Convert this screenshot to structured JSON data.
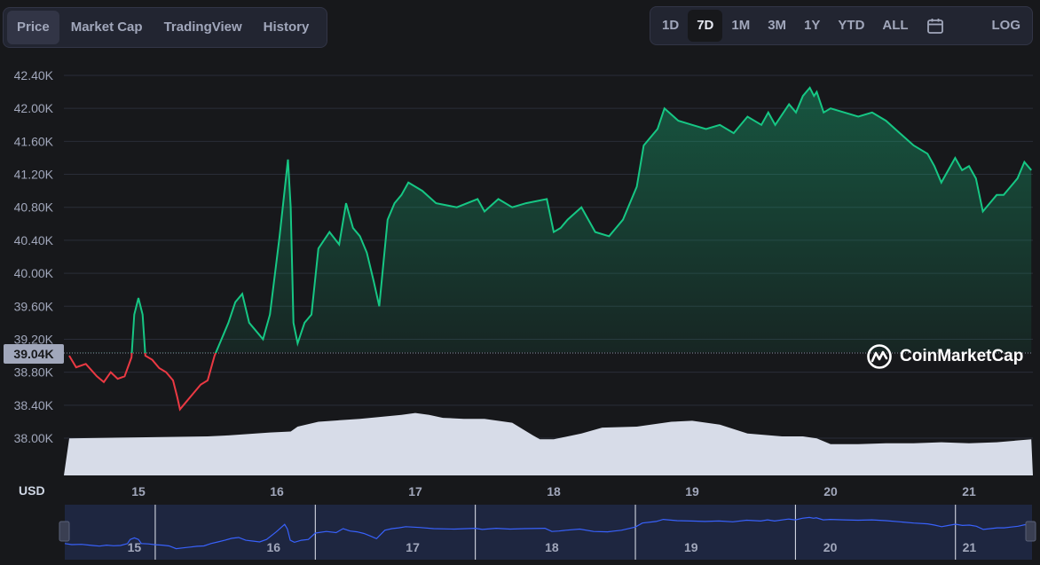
{
  "tabs": [
    {
      "label": "Price",
      "active": true
    },
    {
      "label": "Market Cap",
      "active": false
    },
    {
      "label": "TradingView",
      "active": false
    },
    {
      "label": "History",
      "active": false
    }
  ],
  "ranges": [
    {
      "label": "1D",
      "active": false
    },
    {
      "label": "7D",
      "active": true
    },
    {
      "label": "1M",
      "active": false
    },
    {
      "label": "3M",
      "active": false
    },
    {
      "label": "1Y",
      "active": false
    },
    {
      "label": "YTD",
      "active": false
    },
    {
      "label": "ALL",
      "active": false
    }
  ],
  "calendar_icon": "calendar-icon",
  "log_label": "LOG",
  "currency_label": "USD",
  "current_price_label": "39.04K",
  "brand": {
    "name": "CoinMarketCap",
    "logo_icon": "coinmarketcap-logo-icon"
  },
  "colors": {
    "up": "#16c784",
    "down": "#ea3943",
    "volume": "#d7dce8",
    "navigator_line": "#3861fb"
  },
  "chart_data": {
    "type": "line",
    "xlabel": "",
    "ylabel": "",
    "y_unit": "USD",
    "ylim": [
      37600,
      42500
    ],
    "y_ticks": [
      "42.40K",
      "42.00K",
      "41.60K",
      "41.20K",
      "40.80K",
      "40.40K",
      "40.00K",
      "39.60K",
      "39.20K",
      "38.80K",
      "38.40K",
      "38.00K"
    ],
    "y_tick_values": [
      42400,
      42000,
      41600,
      41200,
      40800,
      40400,
      40000,
      39600,
      39200,
      38800,
      38400,
      38000
    ],
    "x_ticks": [
      "15",
      "16",
      "17",
      "18",
      "19",
      "20",
      "21"
    ],
    "x_tick_day_positions": [
      15,
      16,
      17,
      18,
      19,
      20,
      21
    ],
    "x_range_days": [
      14.5,
      21.45
    ],
    "reference_price": 39040,
    "grid": true,
    "series": [
      {
        "x": [
          14.5,
          14.55,
          14.62,
          14.7,
          14.75,
          14.8,
          14.85,
          14.9,
          14.95,
          14.97,
          15.0,
          15.03,
          15.05,
          15.1,
          15.15,
          15.2,
          15.25,
          15.28,
          15.3,
          15.35,
          15.4,
          15.45,
          15.5,
          15.55,
          15.6,
          15.65,
          15.7,
          15.75,
          15.8,
          15.85,
          15.9,
          15.95,
          16.02,
          16.08,
          16.1,
          16.12,
          16.15,
          16.2,
          16.25,
          16.3,
          16.38,
          16.45,
          16.5,
          16.55,
          16.6,
          16.65,
          16.7,
          16.74,
          16.8,
          16.85,
          16.9,
          16.95,
          17.05,
          17.15,
          17.3,
          17.45,
          17.5,
          17.6,
          17.7,
          17.8,
          17.95,
          18.0,
          18.05,
          18.1,
          18.2,
          18.3,
          18.4,
          18.45,
          18.5,
          18.6,
          18.65,
          18.75,
          18.8,
          18.9,
          19.0,
          19.1,
          19.2,
          19.3,
          19.4,
          19.5,
          19.55,
          19.6,
          19.7,
          19.75,
          19.8,
          19.85,
          19.88,
          19.9,
          19.95,
          20.0,
          20.1,
          20.2,
          20.3,
          20.4,
          20.5,
          20.6,
          20.7,
          20.75,
          20.8,
          20.85,
          20.9,
          20.95,
          21.0,
          21.05,
          21.1,
          21.15,
          21.2,
          21.25,
          21.3,
          21.35,
          21.4,
          21.45
        ],
        "y": [
          39000,
          38860,
          38900,
          38750,
          38680,
          38800,
          38720,
          38750,
          38980,
          39500,
          39700,
          39500,
          39000,
          38950,
          38850,
          38800,
          38700,
          38500,
          38350,
          38450,
          38550,
          38650,
          38700,
          39000,
          39200,
          39400,
          39650,
          39750,
          39400,
          39300,
          39200,
          39500,
          40450,
          41380,
          40800,
          39400,
          39150,
          39400,
          39500,
          40300,
          40500,
          40350,
          40850,
          40550,
          40450,
          40250,
          39900,
          39600,
          40650,
          40850,
          40950,
          41100,
          41000,
          40850,
          40800,
          40900,
          40750,
          40900,
          40800,
          40850,
          40900,
          40500,
          40550,
          40650,
          40800,
          40500,
          40450,
          40550,
          40650,
          41050,
          41550,
          41750,
          42000,
          41850,
          41800,
          41750,
          41800,
          41700,
          41900,
          41800,
          41950,
          41800,
          42050,
          41950,
          42150,
          42250,
          42150,
          42200,
          41950,
          42000,
          41950,
          41900,
          41950,
          41850,
          41700,
          41550,
          41450,
          41300,
          41100,
          41250,
          41400,
          41250,
          41300,
          41150,
          40750,
          40850,
          40950,
          40950,
          41050,
          41150,
          41350,
          41250
        ]
      }
    ],
    "volume": {
      "x": [
        14.5,
        15.0,
        15.5,
        15.65,
        15.95,
        16.1,
        16.15,
        16.3,
        16.6,
        16.9,
        17.0,
        17.1,
        17.2,
        17.35,
        17.5,
        17.7,
        17.85,
        17.9,
        18.0,
        18.2,
        18.35,
        18.6,
        18.85,
        19.0,
        19.2,
        19.4,
        19.65,
        19.8,
        19.9,
        20.0,
        20.2,
        20.4,
        20.6,
        20.8,
        21.0,
        21.2,
        21.45
      ],
      "relative": [
        0.38,
        0.39,
        0.4,
        0.41,
        0.44,
        0.45,
        0.5,
        0.55,
        0.58,
        0.62,
        0.64,
        0.62,
        0.59,
        0.58,
        0.58,
        0.54,
        0.41,
        0.37,
        0.37,
        0.43,
        0.49,
        0.5,
        0.55,
        0.56,
        0.52,
        0.43,
        0.4,
        0.4,
        0.38,
        0.32,
        0.32,
        0.33,
        0.33,
        0.34,
        0.33,
        0.34,
        0.37
      ]
    }
  }
}
